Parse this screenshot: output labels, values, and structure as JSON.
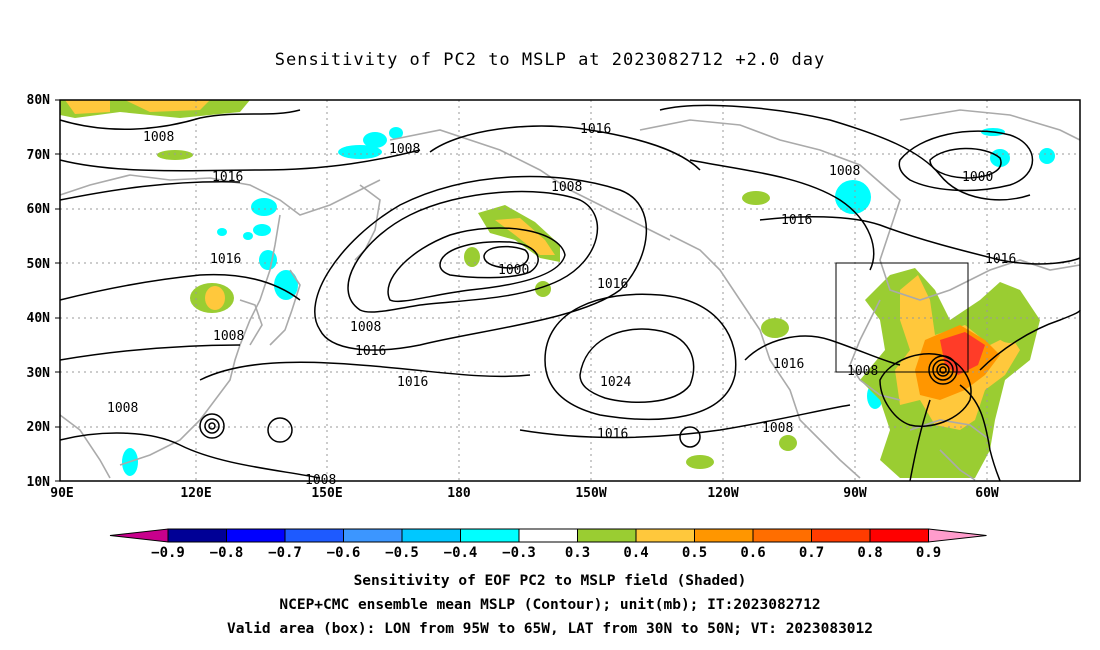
{
  "title": "Sensitivity of PC2 to MSLP at 2023082712 +2.0 day",
  "map": {
    "lat_labels": [
      "80N",
      "70N",
      "60N",
      "50N",
      "40N",
      "30N",
      "20N",
      "10N"
    ],
    "lon_labels": [
      "90E",
      "120E",
      "150E",
      "180",
      "150W",
      "120W",
      "90W",
      "60W"
    ],
    "contour_labels": {
      "c1": "1008",
      "c2": "1008",
      "c3": "1016",
      "c4": "1016",
      "c5": "1008",
      "c6": "1008",
      "c7": "1000",
      "c8": "1000",
      "c9": "1016",
      "c10": "1016",
      "c11": "1008",
      "c12": "1016",
      "c13": "1016",
      "c14": "1008",
      "c15": "1016",
      "c16": "1024",
      "c17": "1016",
      "c18": "1016",
      "c19": "1008",
      "c20": "1008",
      "c21": "1008",
      "c22": "1008"
    },
    "valid_box": {
      "lon_from": "95W",
      "lon_to": "65W",
      "lat_from": "30N",
      "lat_to": "50N"
    },
    "shading_colors": {
      "cyan": "#00ffff",
      "green": "#9acd32",
      "yellow": "#ffc83c",
      "orange": "#ff9600",
      "red": "#ff3c28"
    }
  },
  "colorbar": {
    "labels": [
      "-0.9",
      "-0.8",
      "-0.7",
      "-0.6",
      "-0.5",
      "-0.4",
      "-0.3",
      "0.3",
      "0.4",
      "0.5",
      "0.6",
      "0.7",
      "0.8",
      "0.9"
    ],
    "colors": [
      "#000096",
      "#0000ff",
      "#1e5aff",
      "#3c96ff",
      "#00c8ff",
      "#00ffff",
      "#ffffff",
      "#9acd32",
      "#ffc83c",
      "#ff9600",
      "#ff6e00",
      "#ff3c00",
      "#ff0000"
    ],
    "low_arrow_color": "#c8008c",
    "high_arrow_color": "#ff9ccc"
  },
  "captions": {
    "line1": "Sensitivity of EOF PC2 to MSLP field (Shaded)",
    "line2": "NCEP+CMC ensemble mean MSLP (Contour); unit(mb); IT:2023082712",
    "line3": "Valid area (box): LON from 95W to 65W, LAT from 30N to 50N; VT: 2023083012"
  }
}
